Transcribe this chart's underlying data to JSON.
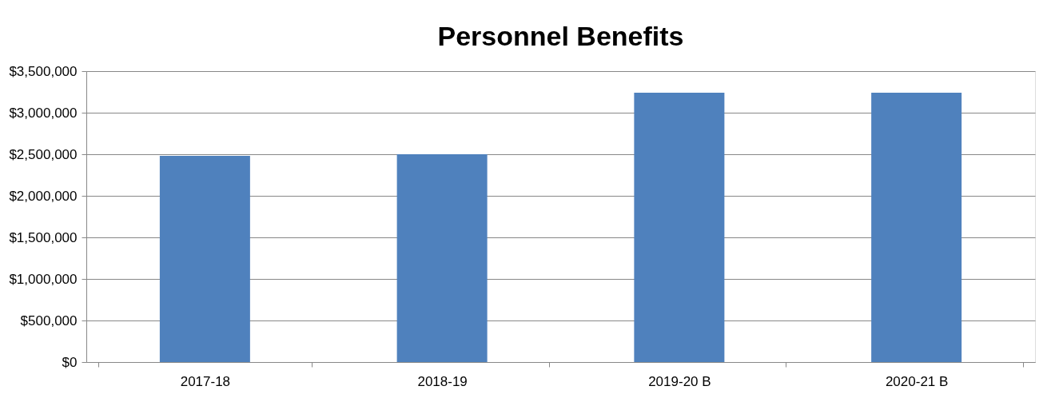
{
  "chart_data": {
    "type": "bar",
    "title": "Personnel Benefits",
    "categories": [
      "2017-18",
      "2018-19",
      "2019-20 B",
      "2020-21 B"
    ],
    "values": [
      2480000,
      2500000,
      3240000,
      3240000
    ],
    "color": "#4f81bd",
    "ylim": [
      0,
      3500000
    ],
    "yticks": [
      {
        "value": 0,
        "label": "$0"
      },
      {
        "value": 500000,
        "label": "$500,000"
      },
      {
        "value": 1000000,
        "label": "$1,000,000"
      },
      {
        "value": 1500000,
        "label": "$1,500,000"
      },
      {
        "value": 2000000,
        "label": "$2,000,000"
      },
      {
        "value": 2500000,
        "label": "$2,500,000"
      },
      {
        "value": 3000000,
        "label": "$3,000,000"
      },
      {
        "value": 3500000,
        "label": "$3,500,000"
      }
    ],
    "grid": "y"
  }
}
